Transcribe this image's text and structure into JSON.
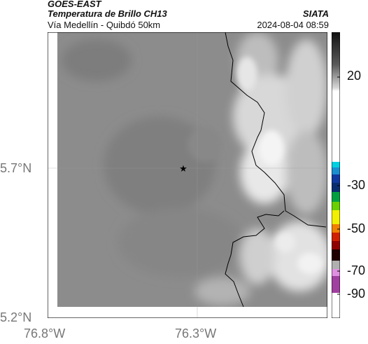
{
  "header": {
    "satellite": "GOES-EAST",
    "product": "Temperatura de Brillo CH13",
    "region": "Vía Medellín - Quibdó 50km",
    "org": "SIATA",
    "datetime": "2024-08-04 08:59"
  },
  "axes": {
    "lat_ticks": [
      "5.7°N",
      "5.2°N"
    ],
    "lon_ticks": [
      "76.8°W",
      "76.3°W"
    ]
  },
  "colorbar": {
    "labels": [
      "20",
      "-30",
      "-50",
      "-70",
      "-90"
    ]
  },
  "map": {
    "marker": "star-icon",
    "colors": {
      "base_gray": "#8a8a8a",
      "cloud": "#f2f2f2",
      "border": "#000000"
    }
  }
}
